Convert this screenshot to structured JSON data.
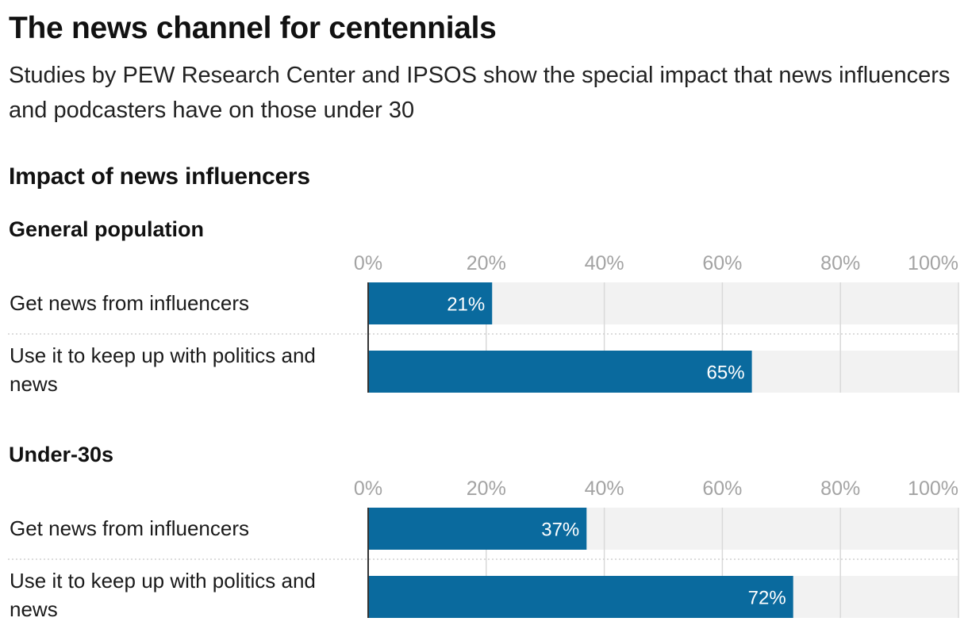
{
  "header": {
    "title": "The news channel for centennials",
    "subtitle": "Studies by PEW Research Center and IPSOS show the special impact that news influencers and podcasters have on those under 30",
    "section_title": "Impact of news influencers"
  },
  "colors": {
    "bar": "#0a6a9e",
    "track": "#f2f2f2",
    "grid": "#d9d9d9",
    "axis": "#333333",
    "tick": "#a3a3a3"
  },
  "chart_data": [
    {
      "type": "bar",
      "orientation": "horizontal",
      "title": "General population",
      "categories": [
        "Get news from influencers",
        "Use it to keep up with politics and news"
      ],
      "values": [
        21,
        65
      ],
      "value_labels": [
        "21%",
        "65%"
      ],
      "xlim": [
        0,
        100
      ],
      "ticks": [
        0,
        20,
        40,
        60,
        80,
        100
      ],
      "tick_labels": [
        "0%",
        "20%",
        "40%",
        "60%",
        "80%",
        "100%"
      ],
      "grid": true
    },
    {
      "type": "bar",
      "orientation": "horizontal",
      "title": "Under-30s",
      "categories": [
        "Get news from influencers",
        "Use it to keep up with politics and news"
      ],
      "values": [
        37,
        72
      ],
      "value_labels": [
        "37%",
        "72%"
      ],
      "xlim": [
        0,
        100
      ],
      "ticks": [
        0,
        20,
        40,
        60,
        80,
        100
      ],
      "tick_labels": [
        "0%",
        "20%",
        "40%",
        "60%",
        "80%",
        "100%"
      ],
      "grid": true
    }
  ]
}
